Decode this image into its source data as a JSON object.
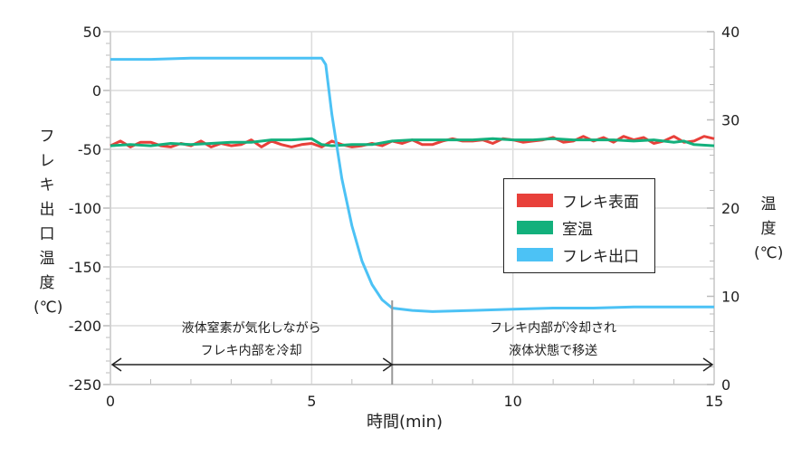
{
  "chart_data": {
    "type": "line",
    "xlabel": "時間(min)",
    "ylabel_left": "フレキ出口温度(℃)",
    "ylabel_right_chars": [
      "温",
      "度",
      "(℃)"
    ],
    "ylabel_left_chars": [
      "フ",
      "レ",
      "キ",
      "出",
      "口",
      "温",
      "度",
      "(℃)"
    ],
    "xlim": [
      0,
      15
    ],
    "ylim_left": [
      -250,
      50
    ],
    "ylim_right": [
      0,
      40
    ],
    "x_ticks": [
      "0",
      "5",
      "10",
      "15"
    ],
    "y_left_ticks": [
      "50",
      "0",
      "-50",
      "-100",
      "-150",
      "-200",
      "-250"
    ],
    "y_right_ticks": [
      "40",
      "30",
      "20",
      "10",
      "0"
    ],
    "grid": true,
    "legend_position": "center-right",
    "series": [
      {
        "name": "フレキ表面",
        "color": "#e8403a",
        "x": [
          0,
          0.25,
          0.5,
          0.75,
          1,
          1.25,
          1.5,
          1.75,
          2,
          2.25,
          2.5,
          2.75,
          3,
          3.25,
          3.5,
          3.75,
          4,
          4.25,
          4.5,
          4.75,
          5,
          5.25,
          5.5,
          5.75,
          6,
          6.25,
          6.5,
          6.75,
          7,
          7.25,
          7.5,
          7.75,
          8,
          8.25,
          8.5,
          8.75,
          9,
          9.25,
          9.5,
          9.75,
          10,
          10.25,
          10.5,
          10.75,
          11,
          11.25,
          11.5,
          11.75,
          12,
          12.25,
          12.5,
          12.75,
          13,
          13.25,
          13.5,
          13.75,
          14,
          14.25,
          14.5,
          14.75,
          15
        ],
        "values": [
          -47,
          -43,
          -48,
          -44,
          -44,
          -47,
          -48,
          -45,
          -47,
          -43,
          -48,
          -45,
          -47,
          -46,
          -42,
          -48,
          -43,
          -46,
          -48,
          -46,
          -45,
          -48,
          -43,
          -46,
          -48,
          -47,
          -45,
          -47,
          -43,
          -45,
          -42,
          -46,
          -46,
          -43,
          -41,
          -43,
          -43,
          -42,
          -45,
          -41,
          -42,
          -44,
          -43,
          -42,
          -40,
          -44,
          -43,
          -39,
          -43,
          -40,
          -44,
          -39,
          -42,
          -40,
          -45,
          -43,
          -39,
          -44,
          -43,
          -39,
          -41
        ]
      },
      {
        "name": "室温",
        "color": "#13b07c",
        "x": [
          0,
          0.5,
          1,
          1.5,
          2,
          2.5,
          3,
          3.5,
          4,
          4.5,
          5,
          5.25,
          5.5,
          6,
          6.5,
          7,
          7.5,
          8,
          8.5,
          9,
          9.5,
          10,
          10.5,
          11,
          11.5,
          12,
          12.5,
          13,
          13.5,
          14,
          14.25,
          14.5,
          15
        ],
        "values": [
          -47,
          -46,
          -47,
          -45,
          -46,
          -45,
          -44,
          -44,
          -42,
          -42,
          -41,
          -46,
          -47,
          -46,
          -46,
          -43,
          -42,
          -42,
          -42,
          -42,
          -41,
          -42,
          -42,
          -41,
          -42,
          -42,
          -42,
          -43,
          -42,
          -44,
          -43,
          -46,
          -47
        ]
      },
      {
        "name": "フレキ出口",
        "color": "#4cc2f5",
        "x": [
          0,
          1,
          2,
          3,
          4,
          5,
          5.25,
          5.35,
          5.5,
          5.75,
          6,
          6.25,
          6.5,
          6.75,
          7,
          7.5,
          8,
          9,
          10,
          11,
          12,
          13,
          14,
          15
        ],
        "values": [
          26.5,
          26.5,
          27.5,
          27.5,
          27.5,
          27.5,
          27.5,
          22,
          -20,
          -75,
          -115,
          -145,
          -165,
          -178,
          -185,
          -187,
          -188,
          -187,
          -186,
          -185,
          -185,
          -184,
          -184,
          -184
        ]
      }
    ],
    "annotations": {
      "phase1_line1": "液体窒素が気化しながら",
      "phase1_line2": "フレキ内部を冷却",
      "phase2_line1": "フレキ内部が冷却され",
      "phase2_line2": "液体状態で移送",
      "divider_x": 7
    }
  }
}
